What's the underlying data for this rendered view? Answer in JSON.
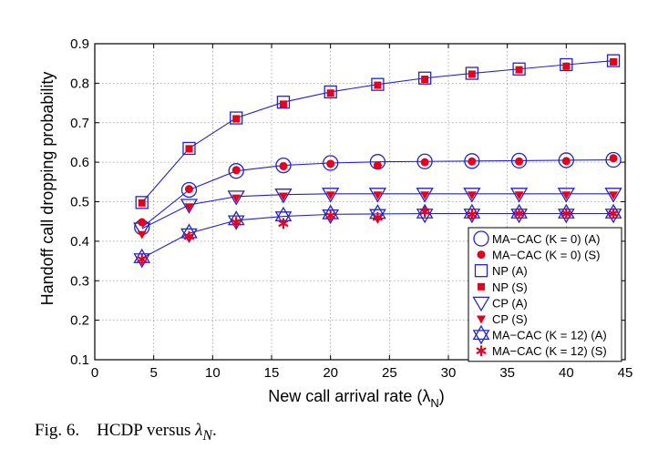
{
  "caption": {
    "label": "Fig. 6.",
    "text": "HCDP versus",
    "symbol": "λ",
    "subscript": "N",
    "trailing": "."
  },
  "chart_data": {
    "type": "line",
    "xlabel": "New call arrival rate (λ",
    "xlabel_sub": "N",
    "xlabel_end": ")",
    "ylabel": "Handoff call dropping probability",
    "xlim": [
      0,
      45
    ],
    "ylim": [
      0.1,
      0.9
    ],
    "xticks": [
      "0",
      "5",
      "10",
      "15",
      "20",
      "25",
      "30",
      "35",
      "40",
      "45"
    ],
    "yticks": [
      "0.1",
      "0.2",
      "0.3",
      "0.4",
      "0.5",
      "0.6",
      "0.7",
      "0.8",
      "0.9"
    ],
    "grid": true,
    "legend_position": "bottom-right",
    "colors": {
      "analytic": "#2323c8",
      "simulation": "#e6001e",
      "frame": "#000000",
      "grid": "#9a9a9a"
    },
    "series": [
      {
        "name": "MA−CAC (K = 0) (A)",
        "marker": "circle-open",
        "color": "#2323c8",
        "line": true,
        "x": [
          4,
          8,
          12,
          16,
          20,
          24,
          28,
          32,
          36,
          40,
          44
        ],
        "y": [
          0.435,
          0.53,
          0.578,
          0.592,
          0.598,
          0.601,
          0.602,
          0.603,
          0.604,
          0.605,
          0.606
        ]
      },
      {
        "name": "MA−CAC (K = 0) (S)",
        "marker": "circle-filled",
        "color": "#e6001e",
        "line": false,
        "x": [
          4,
          8,
          12,
          16,
          20,
          24,
          28,
          32,
          36,
          40,
          44
        ],
        "y": [
          0.448,
          0.532,
          0.58,
          0.59,
          0.596,
          0.592,
          0.6,
          0.602,
          0.602,
          0.603,
          0.61
        ]
      },
      {
        "name": "NP (A)",
        "marker": "square-open",
        "color": "#2323c8",
        "line": true,
        "x": [
          4,
          8,
          12,
          16,
          20,
          24,
          28,
          32,
          36,
          40,
          44
        ],
        "y": [
          0.498,
          0.635,
          0.712,
          0.752,
          0.778,
          0.797,
          0.813,
          0.825,
          0.836,
          0.847,
          0.857
        ]
      },
      {
        "name": "NP (S)",
        "marker": "square-filled",
        "color": "#e6001e",
        "line": false,
        "x": [
          4,
          8,
          12,
          16,
          20,
          24,
          28,
          32,
          36,
          40,
          44
        ],
        "y": [
          0.497,
          0.634,
          0.71,
          0.747,
          0.775,
          0.795,
          0.81,
          0.823,
          0.834,
          0.843,
          0.854
        ]
      },
      {
        "name": "CP (A)",
        "marker": "triangle-down-open",
        "color": "#2323c8",
        "line": true,
        "x": [
          4,
          8,
          12,
          16,
          20,
          24,
          28,
          32,
          36,
          40,
          44
        ],
        "y": [
          0.432,
          0.492,
          0.513,
          0.518,
          0.52,
          0.52,
          0.52,
          0.52,
          0.52,
          0.52,
          0.52
        ]
      },
      {
        "name": "CP (S)",
        "marker": "triangle-down-filled",
        "color": "#e6001e",
        "line": false,
        "x": [
          4,
          8,
          12,
          16,
          20,
          24,
          28,
          32,
          36,
          40,
          44
        ],
        "y": [
          0.418,
          0.488,
          0.51,
          0.515,
          0.518,
          0.518,
          0.518,
          0.518,
          0.518,
          0.518,
          0.518
        ]
      },
      {
        "name": "MA−CAC (K = 12) (A)",
        "marker": "hexagram-open",
        "color": "#2323c8",
        "line": true,
        "x": [
          4,
          8,
          12,
          16,
          20,
          24,
          28,
          32,
          36,
          40,
          44
        ],
        "y": [
          0.357,
          0.42,
          0.453,
          0.463,
          0.468,
          0.469,
          0.47,
          0.47,
          0.47,
          0.47,
          0.47
        ]
      },
      {
        "name": "MA−CAC (K = 12) (S)",
        "marker": "asterisk-filled",
        "color": "#e6001e",
        "line": false,
        "x": [
          4,
          8,
          12,
          16,
          20,
          24,
          28,
          32,
          36,
          40,
          44
        ],
        "y": [
          0.354,
          0.412,
          0.448,
          0.445,
          0.465,
          0.46,
          0.475,
          0.468,
          0.47,
          0.47,
          0.47
        ]
      }
    ]
  }
}
